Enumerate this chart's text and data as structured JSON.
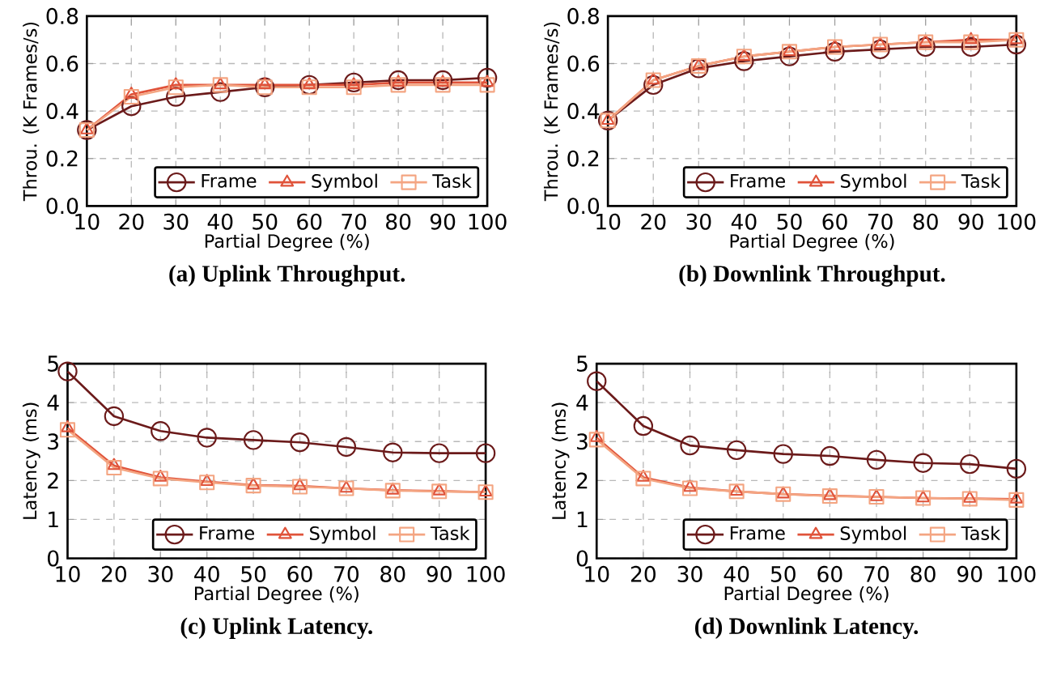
{
  "chart_data": [
    {
      "type": "line",
      "title": "(a) Uplink Throughput.",
      "xlabel": "Partial Degree (%)",
      "ylabel": "Throu. (K Frames/s)",
      "x": [
        10,
        20,
        30,
        40,
        50,
        60,
        70,
        80,
        90,
        100
      ],
      "xlim": [
        10,
        100
      ],
      "xticks": [
        10,
        20,
        30,
        40,
        50,
        60,
        70,
        80,
        90,
        100
      ],
      "ylim": [
        0,
        0.8
      ],
      "yticks": [
        {
          "value": 0,
          "label": "0.0"
        },
        {
          "value": 0.2,
          "label": "0.2"
        },
        {
          "value": 0.4,
          "label": "0.4"
        },
        {
          "value": 0.6,
          "label": "0.6"
        },
        {
          "value": 0.8,
          "label": "0.8"
        }
      ],
      "grid": true,
      "legend": "bottom right",
      "line_style": "solid",
      "series": [
        {
          "name": "Frame",
          "color": "#6b1a1a",
          "marker": "circle",
          "values": [
            0.32,
            0.42,
            0.46,
            0.48,
            0.5,
            0.51,
            0.52,
            0.53,
            0.53,
            0.54
          ]
        },
        {
          "name": "Symbol",
          "color": "#e0533a",
          "marker": "triangle",
          "values": [
            0.32,
            0.47,
            0.51,
            0.51,
            0.51,
            0.51,
            0.51,
            0.52,
            0.52,
            0.52
          ]
        },
        {
          "name": "Task",
          "color": "#f4a582",
          "marker": "square",
          "values": [
            0.32,
            0.46,
            0.5,
            0.51,
            0.5,
            0.5,
            0.5,
            0.51,
            0.51,
            0.51
          ]
        }
      ]
    },
    {
      "type": "line",
      "title": "(b) Downlink Throughput.",
      "xlabel": "Partial Degree (%)",
      "ylabel": "Throu. (K Frames/s)",
      "x": [
        10,
        20,
        30,
        40,
        50,
        60,
        70,
        80,
        90,
        100
      ],
      "xlim": [
        10,
        100
      ],
      "xticks": [
        10,
        20,
        30,
        40,
        50,
        60,
        70,
        80,
        90,
        100
      ],
      "ylim": [
        0,
        0.8
      ],
      "yticks": [
        {
          "value": 0,
          "label": "0.0"
        },
        {
          "value": 0.2,
          "label": "0.2"
        },
        {
          "value": 0.4,
          "label": "0.4"
        },
        {
          "value": 0.6,
          "label": "0.6"
        },
        {
          "value": 0.8,
          "label": "0.8"
        }
      ],
      "grid": true,
      "legend": "bottom right",
      "line_style": "solid",
      "series": [
        {
          "name": "Frame",
          "color": "#6b1a1a",
          "marker": "circle",
          "values": [
            0.36,
            0.51,
            0.58,
            0.61,
            0.63,
            0.65,
            0.66,
            0.67,
            0.67,
            0.68
          ]
        },
        {
          "name": "Symbol",
          "color": "#e0533a",
          "marker": "triangle",
          "values": [
            0.36,
            0.53,
            0.59,
            0.63,
            0.65,
            0.67,
            0.68,
            0.69,
            0.7,
            0.7
          ]
        },
        {
          "name": "Task",
          "color": "#f4a582",
          "marker": "square",
          "values": [
            0.36,
            0.53,
            0.59,
            0.63,
            0.65,
            0.67,
            0.68,
            0.69,
            0.69,
            0.7
          ]
        }
      ]
    },
    {
      "type": "line",
      "title": "(c) Uplink Latency.",
      "xlabel": "Partial Degree (%)",
      "ylabel": "Latency (ms)",
      "x": [
        10,
        20,
        30,
        40,
        50,
        60,
        70,
        80,
        90,
        100
      ],
      "xlim": [
        10,
        100
      ],
      "xticks": [
        10,
        20,
        30,
        40,
        50,
        60,
        70,
        80,
        90,
        100
      ],
      "ylim": [
        0,
        5
      ],
      "yticks": [
        0,
        1,
        2,
        3,
        4,
        5
      ],
      "grid": true,
      "legend": "bottom right",
      "line_style": "solid",
      "series": [
        {
          "name": "Frame",
          "color": "#6b1a1a",
          "marker": "circle",
          "values": [
            4.8,
            3.65,
            3.27,
            3.1,
            3.04,
            2.98,
            2.86,
            2.72,
            2.7,
            2.7
          ]
        },
        {
          "name": "Symbol",
          "color": "#e0533a",
          "marker": "triangle",
          "values": [
            3.35,
            2.38,
            2.08,
            1.97,
            1.88,
            1.86,
            1.8,
            1.75,
            1.73,
            1.7
          ]
        },
        {
          "name": "Task",
          "color": "#f4a582",
          "marker": "square",
          "values": [
            3.3,
            2.33,
            2.05,
            1.95,
            1.87,
            1.84,
            1.8,
            1.74,
            1.72,
            1.7
          ]
        }
      ]
    },
    {
      "type": "line",
      "title": "(d) Downlink Latency.",
      "xlabel": "Partial Degree (%)",
      "ylabel": "Latency (ms)",
      "x": [
        10,
        20,
        30,
        40,
        50,
        60,
        70,
        80,
        90,
        100
      ],
      "xlim": [
        10,
        100
      ],
      "xticks": [
        10,
        20,
        30,
        40,
        50,
        60,
        70,
        80,
        90,
        100
      ],
      "ylim": [
        0,
        5
      ],
      "yticks": [
        0,
        1,
        2,
        3,
        4,
        5
      ],
      "grid": true,
      "legend": "bottom right",
      "line_style": "solid",
      "series": [
        {
          "name": "Frame",
          "color": "#6b1a1a",
          "marker": "circle",
          "values": [
            4.55,
            3.4,
            2.9,
            2.78,
            2.68,
            2.63,
            2.53,
            2.45,
            2.42,
            2.3
          ]
        },
        {
          "name": "Symbol",
          "color": "#e0533a",
          "marker": "triangle",
          "values": [
            3.1,
            2.08,
            1.82,
            1.72,
            1.65,
            1.61,
            1.58,
            1.55,
            1.54,
            1.52
          ]
        },
        {
          "name": "Task",
          "color": "#f4a582",
          "marker": "square",
          "values": [
            3.05,
            2.05,
            1.8,
            1.72,
            1.65,
            1.6,
            1.58,
            1.55,
            1.53,
            1.5
          ]
        }
      ]
    }
  ]
}
